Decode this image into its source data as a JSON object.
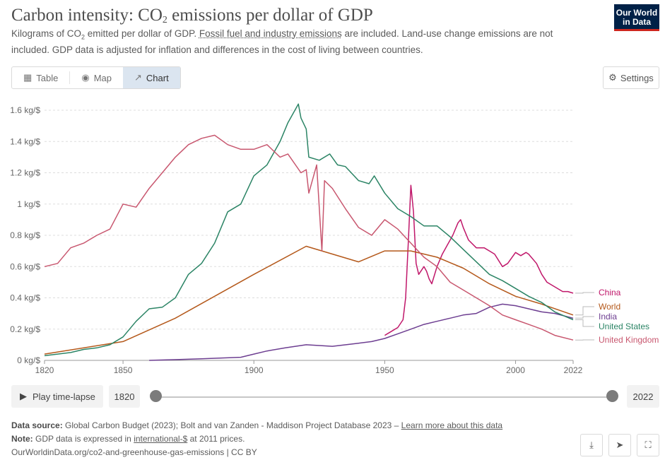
{
  "header": {
    "title_main": "Carbon intensity: CO",
    "title_sub": "2",
    "title_rest": " emissions per dollar of GDP",
    "subtitle_a": "Kilograms of CO",
    "subtitle_sub": "2",
    "subtitle_b": " emitted per dollar of GDP. ",
    "subtitle_link": "Fossil fuel and industry emissions",
    "subtitle_c": " are included. Land-use change emissions are not included. GDP data is adjusted for inflation and differences in the cost of living between countries.",
    "logo_line1": "Our World",
    "logo_line2": "in Data"
  },
  "tabs": [
    {
      "label": "Table",
      "icon": "table-icon"
    },
    {
      "label": "Map",
      "icon": "globe-icon"
    },
    {
      "label": "Chart",
      "icon": "line-chart-icon",
      "active": true
    }
  ],
  "settings_label": "Settings",
  "controls": {
    "play_label": "Play time-lapse",
    "start_year": "1820",
    "end_year": "2022",
    "range_start_fraction": 0,
    "range_end_fraction": 1
  },
  "footer": {
    "source_label": "Data source:",
    "source_text": " Global Carbon Budget (2023); Bolt and van Zanden - Maddison Project Database 2023 – ",
    "source_link": "Learn more about this data",
    "note_label": "Note:",
    "note_a": " GDP data is expressed in ",
    "note_link": "international-$",
    "note_b": " at 2011 prices.",
    "url": "OurWorldinData.org/co2-and-greenhouse-gas-emissions | CC BY"
  },
  "colors": {
    "china": "#c0176a",
    "world": "#b4581a",
    "india": "#6d3e91",
    "us": "#2b8465",
    "uk": "#c8576f",
    "grid": "#dddddd"
  },
  "chart_data": {
    "type": "line",
    "ylabel_unit": "kg/$",
    "xlim": [
      1820,
      2022
    ],
    "ylim": [
      0,
      1.6
    ],
    "x_ticks": [
      "1820",
      "1850",
      "1900",
      "1950",
      "2000",
      "2022"
    ],
    "y_ticks": [
      "0 kg/$",
      "0.2 kg/$",
      "0.4 kg/$",
      "0.6 kg/$",
      "0.8 kg/$",
      "1 kg/$",
      "1.2 kg/$",
      "1.4 kg/$",
      "1.6 kg/$"
    ],
    "series": [
      {
        "name": "China",
        "color_key": "china",
        "points": [
          [
            1950,
            0.16
          ],
          [
            1952,
            0.18
          ],
          [
            1955,
            0.21
          ],
          [
            1957,
            0.26
          ],
          [
            1958,
            0.4
          ],
          [
            1959,
            0.75
          ],
          [
            1960,
            1.12
          ],
          [
            1961,
            0.95
          ],
          [
            1962,
            0.62
          ],
          [
            1963,
            0.55
          ],
          [
            1965,
            0.6
          ],
          [
            1966,
            0.57
          ],
          [
            1967,
            0.52
          ],
          [
            1968,
            0.49
          ],
          [
            1970,
            0.6
          ],
          [
            1972,
            0.68
          ],
          [
            1974,
            0.74
          ],
          [
            1976,
            0.8
          ],
          [
            1978,
            0.88
          ],
          [
            1979,
            0.9
          ],
          [
            1980,
            0.85
          ],
          [
            1982,
            0.77
          ],
          [
            1985,
            0.72
          ],
          [
            1988,
            0.72
          ],
          [
            1990,
            0.7
          ],
          [
            1992,
            0.68
          ],
          [
            1995,
            0.6
          ],
          [
            1997,
            0.62
          ],
          [
            2000,
            0.69
          ],
          [
            2002,
            0.67
          ],
          [
            2004,
            0.69
          ],
          [
            2005,
            0.68
          ],
          [
            2008,
            0.62
          ],
          [
            2010,
            0.55
          ],
          [
            2012,
            0.5
          ],
          [
            2015,
            0.47
          ],
          [
            2018,
            0.44
          ],
          [
            2020,
            0.44
          ],
          [
            2022,
            0.43
          ]
        ]
      },
      {
        "name": "World",
        "color_key": "world",
        "points": [
          [
            1820,
            0.04
          ],
          [
            1850,
            0.12
          ],
          [
            1870,
            0.27
          ],
          [
            1900,
            0.55
          ],
          [
            1920,
            0.73
          ],
          [
            1940,
            0.63
          ],
          [
            1950,
            0.7
          ],
          [
            1960,
            0.7
          ],
          [
            1970,
            0.66
          ],
          [
            1980,
            0.59
          ],
          [
            1990,
            0.49
          ],
          [
            2000,
            0.41
          ],
          [
            2010,
            0.36
          ],
          [
            2022,
            0.29
          ]
        ]
      },
      {
        "name": "India",
        "color_key": "india",
        "points": [
          [
            1860,
            0.0
          ],
          [
            1880,
            0.01
          ],
          [
            1895,
            0.02
          ],
          [
            1900,
            0.04
          ],
          [
            1905,
            0.06
          ],
          [
            1912,
            0.08
          ],
          [
            1920,
            0.1
          ],
          [
            1930,
            0.09
          ],
          [
            1940,
            0.11
          ],
          [
            1945,
            0.12
          ],
          [
            1950,
            0.14
          ],
          [
            1955,
            0.17
          ],
          [
            1960,
            0.2
          ],
          [
            1965,
            0.23
          ],
          [
            1970,
            0.25
          ],
          [
            1975,
            0.27
          ],
          [
            1980,
            0.29
          ],
          [
            1985,
            0.3
          ],
          [
            1990,
            0.34
          ],
          [
            1995,
            0.36
          ],
          [
            2000,
            0.35
          ],
          [
            2005,
            0.33
          ],
          [
            2010,
            0.31
          ],
          [
            2015,
            0.3
          ],
          [
            2022,
            0.27
          ]
        ]
      },
      {
        "name": "United States",
        "color_key": "us",
        "points": [
          [
            1820,
            0.03
          ],
          [
            1825,
            0.04
          ],
          [
            1830,
            0.05
          ],
          [
            1835,
            0.07
          ],
          [
            1840,
            0.08
          ],
          [
            1845,
            0.1
          ],
          [
            1850,
            0.15
          ],
          [
            1855,
            0.25
          ],
          [
            1860,
            0.33
          ],
          [
            1865,
            0.34
          ],
          [
            1870,
            0.4
          ],
          [
            1875,
            0.55
          ],
          [
            1880,
            0.62
          ],
          [
            1885,
            0.75
          ],
          [
            1890,
            0.95
          ],
          [
            1895,
            1.0
          ],
          [
            1900,
            1.18
          ],
          [
            1905,
            1.25
          ],
          [
            1910,
            1.4
          ],
          [
            1913,
            1.52
          ],
          [
            1917,
            1.64
          ],
          [
            1918,
            1.55
          ],
          [
            1920,
            1.48
          ],
          [
            1921,
            1.3
          ],
          [
            1925,
            1.28
          ],
          [
            1929,
            1.32
          ],
          [
            1932,
            1.25
          ],
          [
            1935,
            1.24
          ],
          [
            1940,
            1.15
          ],
          [
            1944,
            1.13
          ],
          [
            1946,
            1.18
          ],
          [
            1950,
            1.07
          ],
          [
            1955,
            0.97
          ],
          [
            1960,
            0.92
          ],
          [
            1965,
            0.86
          ],
          [
            1970,
            0.86
          ],
          [
            1975,
            0.79
          ],
          [
            1980,
            0.71
          ],
          [
            1985,
            0.63
          ],
          [
            1990,
            0.55
          ],
          [
            1995,
            0.51
          ],
          [
            2000,
            0.46
          ],
          [
            2005,
            0.41
          ],
          [
            2010,
            0.37
          ],
          [
            2015,
            0.31
          ],
          [
            2022,
            0.26
          ]
        ]
      },
      {
        "name": "United Kingdom",
        "color_key": "uk",
        "points": [
          [
            1820,
            0.6
          ],
          [
            1825,
            0.62
          ],
          [
            1830,
            0.72
          ],
          [
            1835,
            0.75
          ],
          [
            1840,
            0.8
          ],
          [
            1845,
            0.84
          ],
          [
            1850,
            1.0
          ],
          [
            1855,
            0.98
          ],
          [
            1860,
            1.1
          ],
          [
            1865,
            1.2
          ],
          [
            1870,
            1.3
          ],
          [
            1875,
            1.38
          ],
          [
            1880,
            1.42
          ],
          [
            1885,
            1.44
          ],
          [
            1890,
            1.38
          ],
          [
            1895,
            1.35
          ],
          [
            1900,
            1.35
          ],
          [
            1905,
            1.38
          ],
          [
            1910,
            1.3
          ],
          [
            1913,
            1.32
          ],
          [
            1918,
            1.2
          ],
          [
            1920,
            1.22
          ],
          [
            1921,
            1.07
          ],
          [
            1924,
            1.25
          ],
          [
            1926,
            0.7
          ],
          [
            1927,
            1.15
          ],
          [
            1930,
            1.1
          ],
          [
            1935,
            0.97
          ],
          [
            1940,
            0.85
          ],
          [
            1945,
            0.8
          ],
          [
            1950,
            0.9
          ],
          [
            1955,
            0.84
          ],
          [
            1960,
            0.75
          ],
          [
            1965,
            0.66
          ],
          [
            1970,
            0.6
          ],
          [
            1975,
            0.5
          ],
          [
            1980,
            0.45
          ],
          [
            1985,
            0.4
          ],
          [
            1990,
            0.35
          ],
          [
            1995,
            0.29
          ],
          [
            2000,
            0.26
          ],
          [
            2005,
            0.23
          ],
          [
            2010,
            0.2
          ],
          [
            2015,
            0.16
          ],
          [
            2022,
            0.13
          ]
        ]
      }
    ],
    "legend": [
      {
        "label": "China",
        "color_key": "china",
        "y_value": 0.43
      },
      {
        "label": "World",
        "color_key": "world",
        "y_value": 0.29
      },
      {
        "label": "India",
        "color_key": "india",
        "y_value": 0.27
      },
      {
        "label": "United States",
        "color_key": "us",
        "y_value": 0.26
      },
      {
        "label": "United Kingdom",
        "color_key": "uk",
        "y_value": 0.13
      }
    ],
    "grid": true,
    "legend_placement": "right, labels at line ends"
  }
}
